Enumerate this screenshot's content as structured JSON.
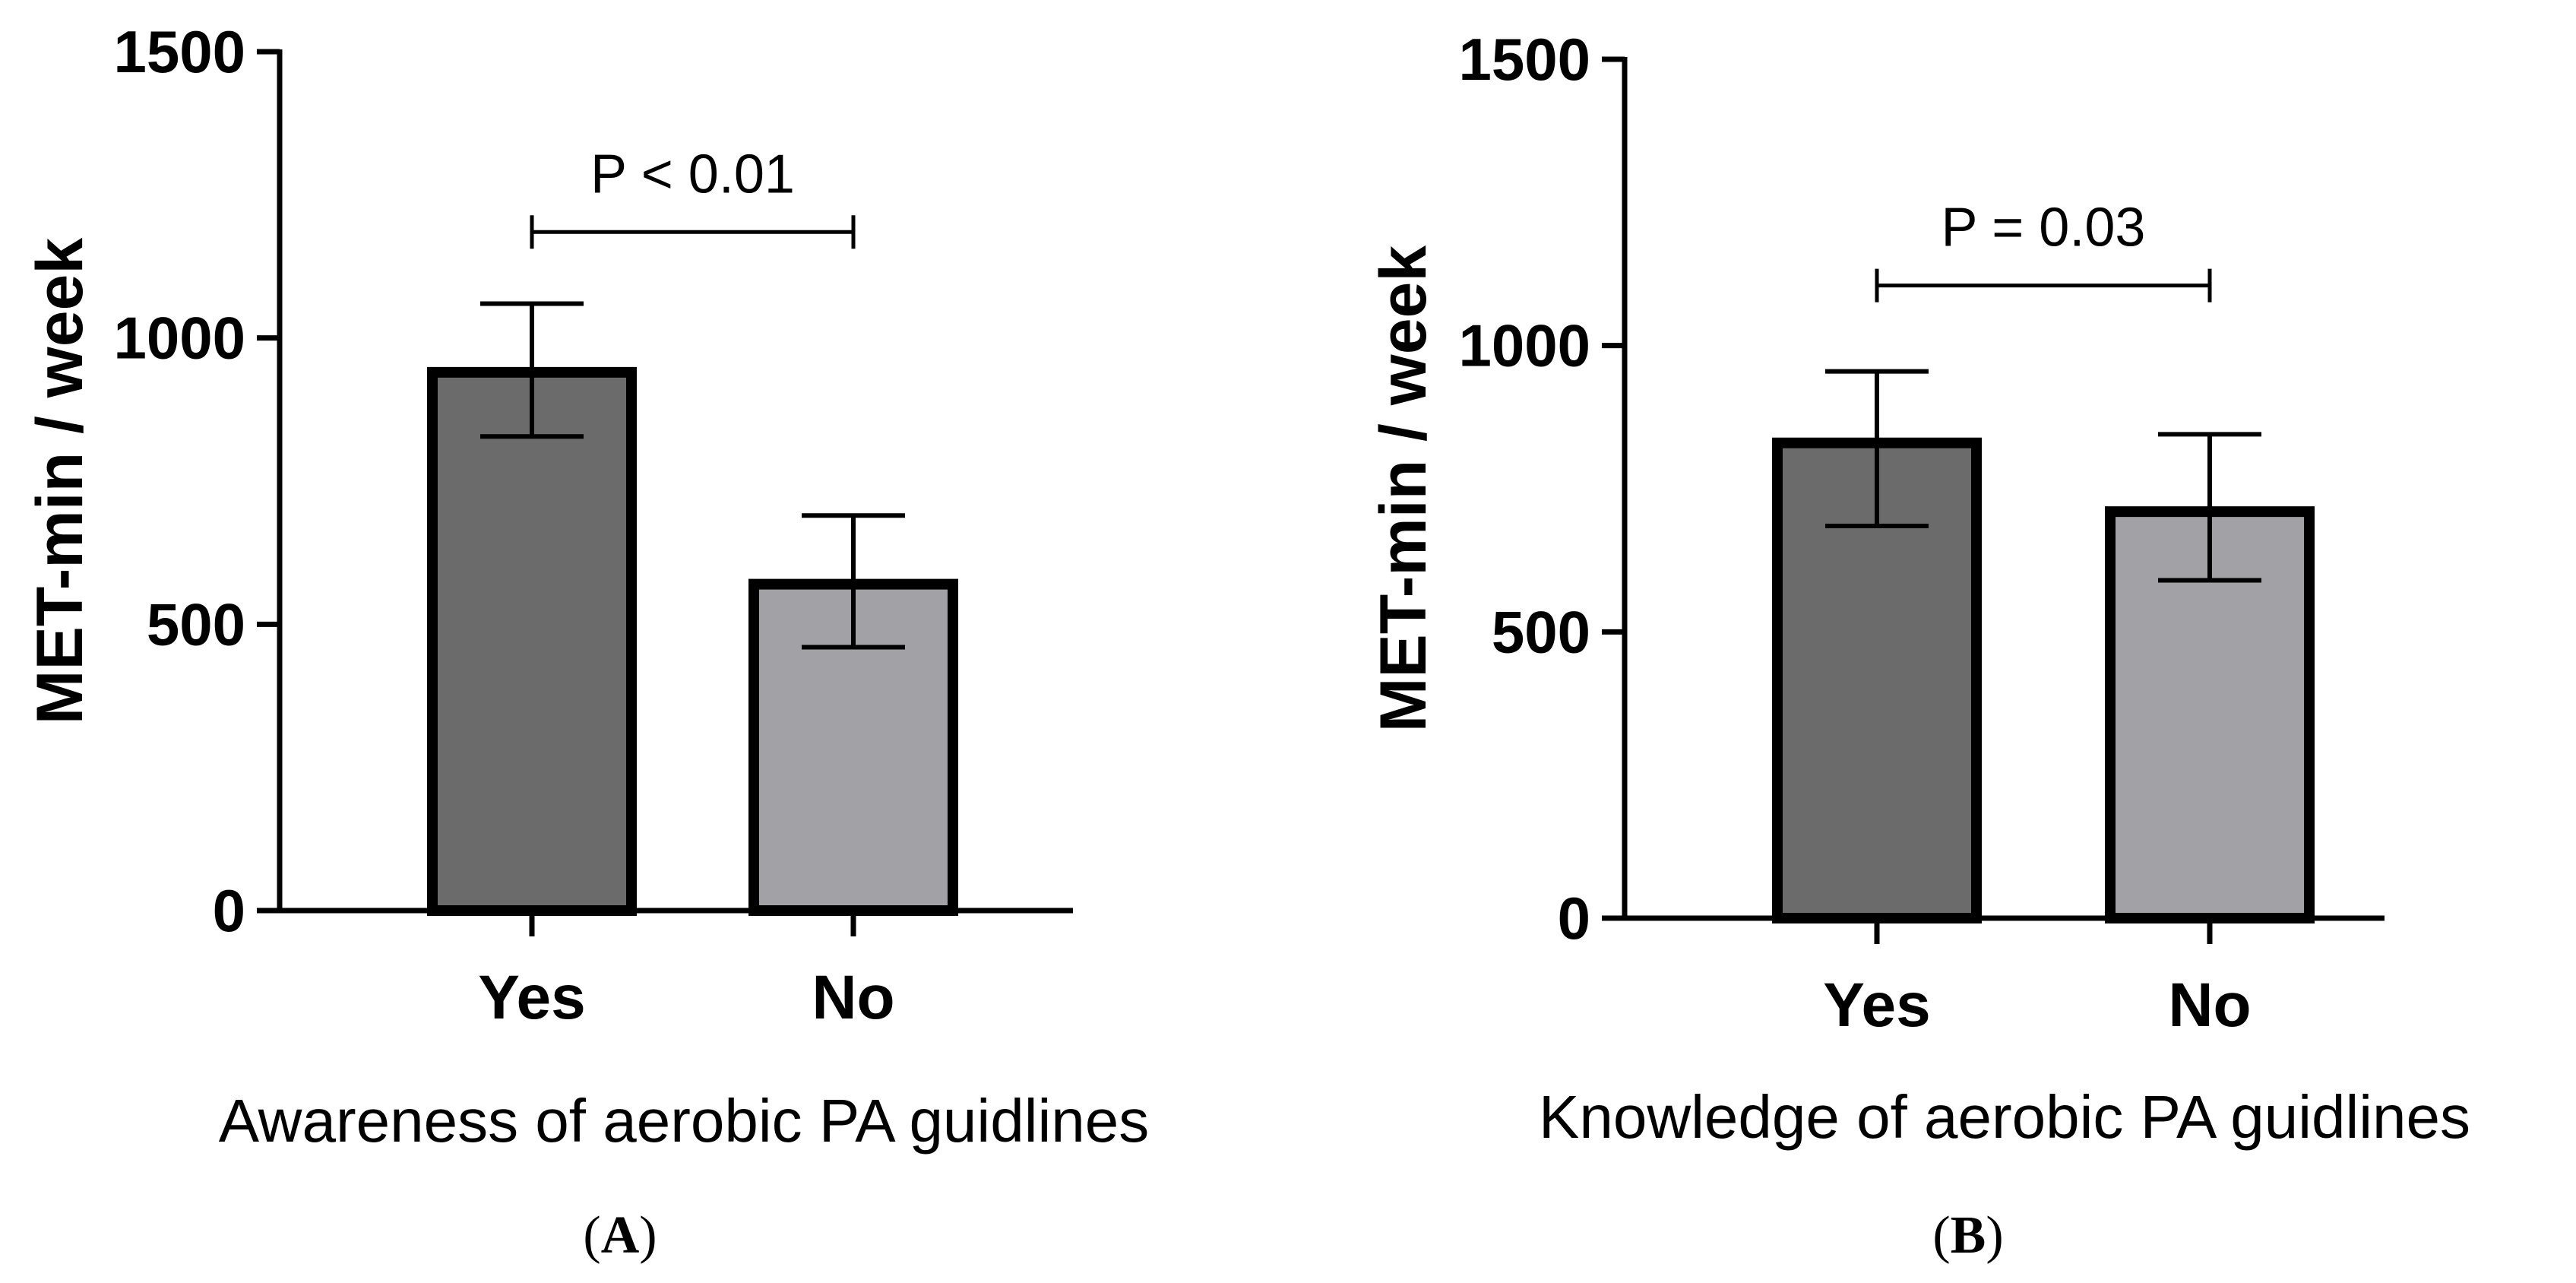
{
  "chart_data": [
    {
      "panel": "A",
      "panel_label": "(A)",
      "type": "bar",
      "categories": [
        "Yes",
        "No"
      ],
      "values": [
        940,
        570
      ],
      "error_upper": [
        1060,
        690
      ],
      "error_lower": [
        828,
        460
      ],
      "ylabel": "MET-min / week",
      "xlabel": "Awareness of aerobic PA guidlines",
      "ylim": [
        0,
        1500
      ],
      "yticks": [
        0,
        500,
        1000,
        1500
      ],
      "annotation": {
        "text": "P < 0.01",
        "bracket_y": 1185
      },
      "colors": [
        "#6b6b6b",
        "#a2a2a6"
      ]
    },
    {
      "panel": "B",
      "panel_label": "(B)",
      "type": "bar",
      "categories": [
        "Yes",
        "No"
      ],
      "values": [
        830,
        710
      ],
      "error_upper": [
        955,
        845
      ],
      "error_lower": [
        685,
        590
      ],
      "ylabel": "MET-min / week",
      "xlabel": "Knowledge of aerobic PA guidlines",
      "ylim": [
        0,
        1500
      ],
      "yticks": [
        0,
        500,
        1000,
        1500
      ],
      "annotation": {
        "text": "P = 0.03",
        "bracket_y": 1105
      },
      "colors": [
        "#6b6b6b",
        "#a2a2a6"
      ]
    }
  ]
}
